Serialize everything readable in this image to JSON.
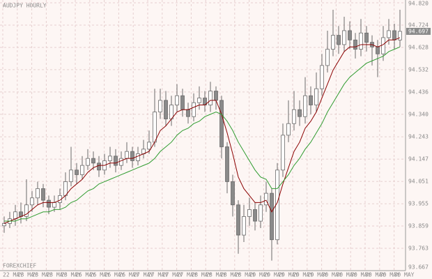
{
  "chart_data": {
    "type": "candlestick",
    "title": "AUDJPY HOURLY",
    "watermark": "FOREXCHIEF",
    "x_labels": [
      "22 MAY",
      "23 MAY",
      "23 MAY",
      "23 MAY",
      "23 MAY",
      "26 MAY",
      "26 MAY",
      "26 MAY",
      "26 MAY",
      "27 MAY",
      "27 MAY",
      "27 MAY",
      "27 MAY",
      "28 MAY",
      "28 MAY",
      "28 MAY",
      "28 MAY",
      "29 MAY",
      "29 MAY",
      "29 MAY",
      "29 MAY",
      "29 MAY",
      "30 MAY",
      "30 MAY",
      "30 MAY",
      "30 MAY",
      "30 MAY",
      "30 MAY"
    ],
    "open": [
      93.86,
      93.87,
      93.89,
      93.92,
      93.9,
      93.95,
      93.98,
      94.02,
      93.97,
      93.94,
      93.96,
      93.99,
      94.05,
      94.1,
      94.08,
      94.12,
      94.15,
      94.13,
      94.1,
      94.14,
      94.16,
      94.12,
      94.15,
      94.18,
      94.14,
      94.17,
      94.19,
      94.22,
      94.35,
      94.4,
      94.32,
      94.38,
      94.42,
      94.36,
      94.33,
      94.39,
      94.41,
      94.38,
      94.44,
      94.4,
      94.2,
      94.05,
      93.95,
      93.82,
      93.9,
      93.93,
      93.88,
      93.95,
      94.0,
      93.8,
      94.1,
      94.25,
      94.3,
      94.36,
      94.33,
      94.42,
      94.38,
      94.45,
      94.55,
      94.62,
      94.68,
      94.64,
      94.7,
      94.66,
      94.62,
      94.69,
      94.65,
      94.63,
      94.6,
      94.67,
      94.7,
      94.66
    ],
    "high": [
      93.9,
      93.92,
      93.95,
      93.96,
      94.06,
      94.01,
      94.05,
      94.04,
      93.99,
      93.99,
      94.02,
      94.09,
      94.2,
      94.13,
      94.16,
      94.19,
      94.18,
      94.16,
      94.17,
      94.2,
      94.19,
      94.18,
      94.22,
      94.2,
      94.2,
      94.23,
      94.27,
      94.45,
      94.45,
      94.44,
      94.42,
      94.47,
      94.45,
      94.39,
      94.43,
      94.46,
      94.44,
      94.48,
      94.46,
      94.42,
      94.22,
      94.08,
      93.97,
      93.95,
      93.98,
      93.96,
      93.99,
      94.05,
      94.02,
      94.13,
      94.3,
      94.4,
      94.44,
      94.4,
      94.5,
      94.46,
      94.52,
      94.6,
      94.7,
      94.79,
      94.72,
      94.76,
      94.74,
      94.69,
      94.75,
      94.72,
      94.68,
      94.66,
      94.72,
      94.75,
      94.73,
      94.79
    ],
    "low": [
      93.83,
      93.85,
      93.86,
      93.87,
      93.88,
      93.92,
      93.95,
      93.94,
      93.91,
      93.92,
      93.93,
      93.97,
      94.03,
      94.04,
      94.06,
      94.1,
      94.1,
      94.07,
      94.08,
      94.11,
      94.09,
      94.1,
      94.13,
      94.11,
      94.12,
      94.15,
      94.17,
      94.2,
      94.32,
      94.29,
      94.29,
      94.35,
      94.33,
      94.3,
      94.31,
      94.36,
      94.35,
      94.35,
      94.36,
      94.15,
      94.0,
      93.9,
      93.74,
      93.79,
      93.86,
      93.84,
      93.85,
      93.92,
      93.71,
      93.78,
      94.07,
      94.22,
      94.27,
      94.29,
      94.3,
      94.34,
      94.35,
      94.42,
      94.52,
      94.59,
      94.6,
      94.61,
      94.62,
      94.58,
      94.59,
      94.61,
      94.55,
      94.5,
      94.57,
      94.64,
      94.62,
      94.63
    ],
    "close": [
      93.87,
      93.89,
      93.92,
      93.9,
      93.95,
      93.98,
      94.02,
      93.97,
      93.94,
      93.96,
      93.99,
      94.05,
      94.1,
      94.08,
      94.12,
      94.15,
      94.13,
      94.1,
      94.14,
      94.16,
      94.12,
      94.15,
      94.18,
      94.14,
      94.17,
      94.19,
      94.22,
      94.35,
      94.4,
      94.32,
      94.38,
      94.42,
      94.36,
      94.33,
      94.39,
      94.41,
      94.38,
      94.44,
      94.4,
      94.2,
      94.05,
      93.95,
      93.82,
      93.9,
      93.93,
      93.88,
      93.95,
      94.0,
      93.8,
      94.1,
      94.25,
      94.3,
      94.36,
      94.33,
      94.42,
      94.38,
      94.45,
      94.55,
      94.62,
      94.68,
      94.64,
      94.7,
      94.66,
      94.62,
      94.69,
      94.65,
      94.63,
      94.6,
      94.67,
      94.7,
      94.66,
      94.697
    ],
    "candle_color": "#6a6a6a",
    "up_fill": "#ffffff",
    "down_fill": "#8a8a8a",
    "series": [
      {
        "color": "#8b0000",
        "values": [
          93.87,
          93.88,
          93.89,
          93.9,
          93.91,
          93.93,
          93.95,
          93.96,
          93.96,
          93.96,
          93.97,
          93.99,
          94.02,
          94.04,
          94.06,
          94.09,
          94.11,
          94.12,
          94.12,
          94.13,
          94.13,
          94.14,
          94.15,
          94.15,
          94.16,
          94.17,
          94.18,
          94.22,
          94.27,
          94.29,
          94.32,
          94.35,
          94.36,
          94.36,
          94.37,
          94.38,
          94.38,
          94.4,
          94.4,
          94.34,
          94.26,
          94.17,
          94.07,
          94.02,
          93.99,
          93.96,
          93.96,
          93.97,
          93.92,
          93.96,
          94.04,
          94.11,
          94.18,
          94.22,
          94.28,
          94.31,
          94.35,
          94.41,
          94.47,
          94.53,
          94.57,
          94.61,
          94.63,
          94.63,
          94.64,
          94.64,
          94.64,
          94.63,
          94.64,
          94.66,
          94.66,
          94.67
        ]
      },
      {
        "color": "#2e9b2e",
        "values": [
          93.88,
          93.88,
          93.88,
          93.89,
          93.89,
          93.9,
          93.91,
          93.92,
          93.92,
          93.93,
          93.93,
          93.94,
          93.96,
          93.97,
          93.99,
          94.01,
          94.02,
          94.04,
          94.05,
          94.06,
          94.07,
          94.08,
          94.09,
          94.1,
          94.11,
          94.12,
          94.13,
          94.15,
          94.18,
          94.2,
          94.22,
          94.25,
          94.27,
          94.28,
          94.3,
          94.31,
          94.33,
          94.34,
          94.35,
          94.34,
          94.31,
          94.27,
          94.22,
          94.18,
          94.14,
          94.1,
          94.07,
          94.06,
          94.02,
          94.02,
          94.05,
          94.08,
          94.12,
          94.15,
          94.19,
          94.22,
          94.26,
          94.3,
          94.35,
          94.39,
          94.43,
          94.47,
          94.5,
          94.52,
          94.54,
          94.56,
          94.57,
          94.58,
          94.59,
          94.61,
          94.62,
          94.63
        ]
      }
    ],
    "ylim": [
      93.667,
      94.832
    ],
    "yticks": [
      {
        "value": 94.82,
        "label": "94.820"
      },
      94.724,
      94.628,
      94.532,
      94.436,
      {
        "value": 94.34,
        "label": "94.340"
      },
      94.243,
      94.147,
      94.051,
      93.955,
      93.859,
      93.763,
      93.667
    ],
    "grid": true
  }
}
